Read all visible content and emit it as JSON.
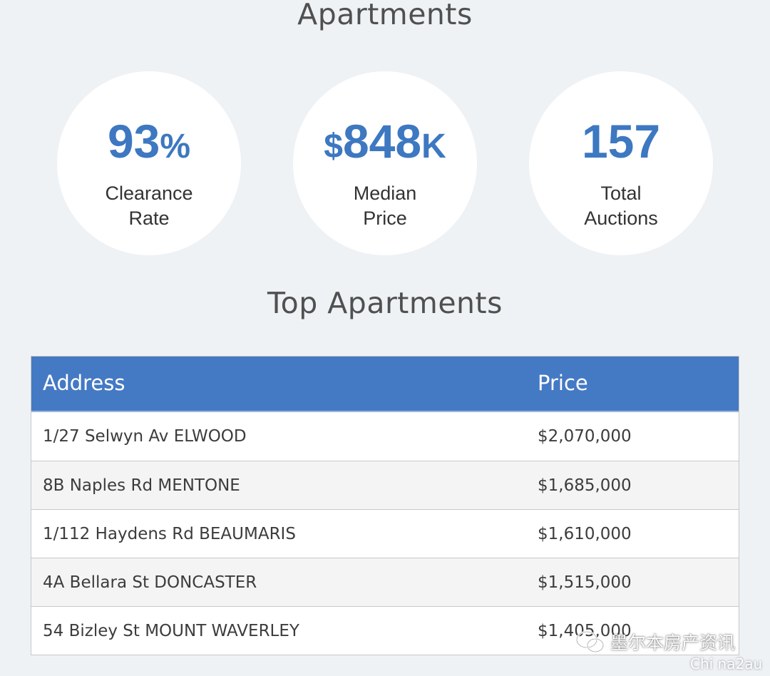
{
  "page": {
    "title": "Apartments"
  },
  "stats": [
    {
      "prefix": "",
      "number": "93",
      "suffix": "%",
      "label_line1": "Clearance",
      "label_line2": "Rate"
    },
    {
      "prefix": "$",
      "number": "848",
      "suffix": "K",
      "label_line1": "Median",
      "label_line2": "Price"
    },
    {
      "prefix": "",
      "number": "157",
      "suffix": "",
      "label_line1": "Total",
      "label_line2": "Auctions"
    }
  ],
  "top_section": {
    "title": "Top Apartments",
    "columns": {
      "address": "Address",
      "price": "Price"
    },
    "rows": [
      {
        "address": "1/27 Selwyn Av ELWOOD",
        "price": "$2,070,000"
      },
      {
        "address": "8B Naples Rd MENTONE",
        "price": "$1,685,000"
      },
      {
        "address": "1/112 Haydens Rd BEAUMARIS",
        "price": "$1,610,000"
      },
      {
        "address": "4A Bellara St DONCASTER",
        "price": "$1,515,000"
      },
      {
        "address": "54 Bizley St MOUNT WAVERLEY",
        "price": "$1,405,000"
      }
    ]
  },
  "watermark": {
    "icon": "wechat-icon",
    "text": "墨尔本房产资讯",
    "sub": "Chi na2au"
  },
  "colors": {
    "accent": "#3d78c1",
    "header_bg": "#4479c4",
    "page_bg": "#eef2f5"
  }
}
